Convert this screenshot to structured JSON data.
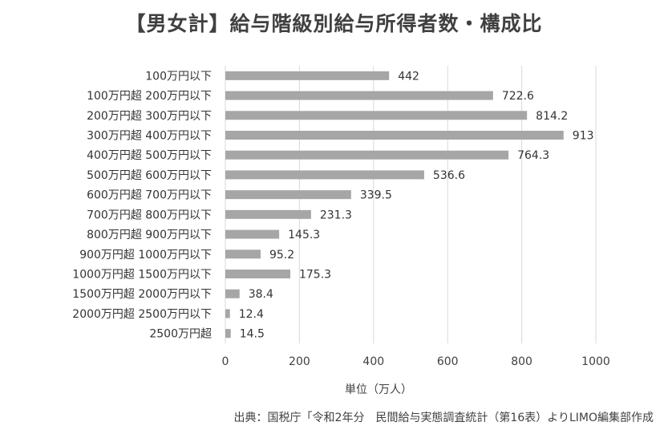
{
  "chart_data": {
    "type": "bar",
    "orientation": "horizontal",
    "title": "【男女計】給与階級別給与所得者数・構成比",
    "categories": [
      "100万円以下",
      "100万円超 200万円以下",
      "200万円超 300万円以下",
      "300万円超 400万円以下",
      "400万円超 500万円以下",
      "500万円超 600万円以下",
      "600万円超 700万円以下",
      "700万円超 800万円以下",
      "800万円超 900万円以下",
      "900万円超 1000万円以下",
      "1000万円超 1500万円以下",
      "1500万円超 2000万円以下",
      "2000万円超 2500万円以下",
      "2500万円超"
    ],
    "values": [
      442,
      722.6,
      814.2,
      913,
      764.3,
      536.6,
      339.5,
      231.3,
      145.3,
      95.2,
      175.3,
      38.4,
      12.4,
      14.5
    ],
    "xlabel": "単位（万人）",
    "xlim": [
      0,
      1000
    ],
    "xticks": [
      0,
      200,
      400,
      600,
      800,
      1000
    ],
    "grid": true,
    "bar_color": "#a6a6a6",
    "grid_color": "#d9d9d9"
  },
  "source": "出典：国税庁「令和2年分　民間給与実態調査統計（第16表）よりLIMO編集部作成"
}
